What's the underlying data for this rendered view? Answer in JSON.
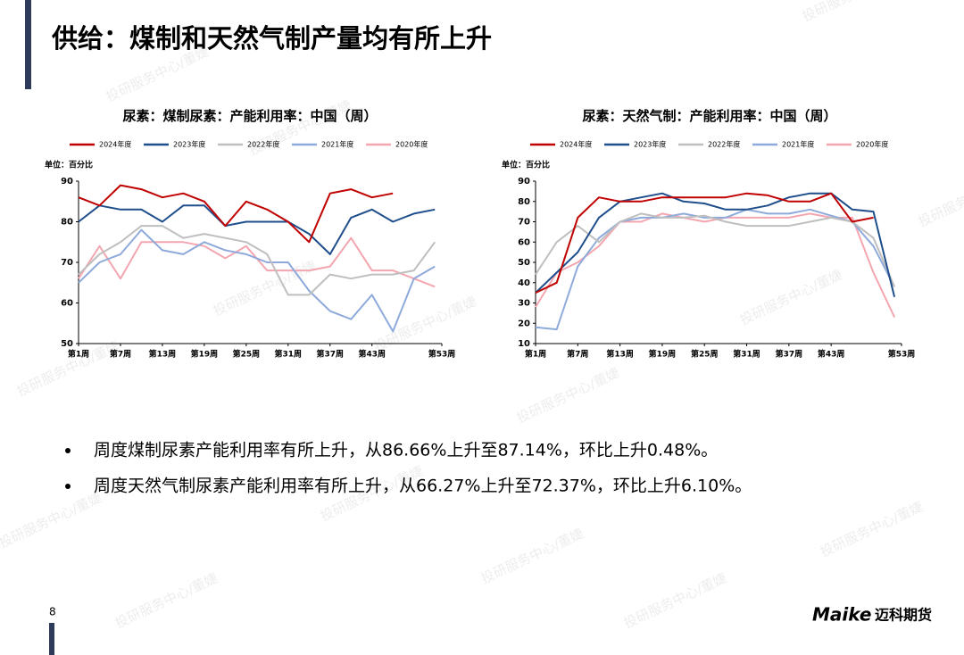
{
  "title": "供给：煤制和天然气制产量均有所上升",
  "bullets": [
    "周度煤制尿素产能利用率有所上升，从86.66%上升至87.14%，环比上升0.48%。",
    "周度天然气制尿素产能利用率有所上升，从66.27%上升至72.37%，环比上升6.10%。"
  ],
  "page_number": "8",
  "logo": {
    "brand": "Maike",
    "name": "迈科期货"
  },
  "watermark": "投研服务中心/董婕",
  "chart_data": [
    {
      "type": "line",
      "title": "尿素：煤制尿素：产能利用率：中国（周）",
      "y_label": "单位：百分比",
      "x": [
        1,
        4,
        7,
        10,
        13,
        16,
        19,
        22,
        25,
        28,
        31,
        34,
        37,
        40,
        43,
        46,
        49,
        52
      ],
      "xlim": [
        1,
        53
      ],
      "xticks": [
        {
          "value": 1,
          "label": "第1周"
        },
        {
          "value": 7,
          "label": "第7周"
        },
        {
          "value": 13,
          "label": "第13周"
        },
        {
          "value": 19,
          "label": "第19周"
        },
        {
          "value": 25,
          "label": "第25周"
        },
        {
          "value": 31,
          "label": "第31周"
        },
        {
          "value": 37,
          "label": "第37周"
        },
        {
          "value": 43,
          "label": "第43周"
        },
        {
          "value": 53,
          "label": "第53周"
        }
      ],
      "ylim": [
        50,
        90
      ],
      "yticks": [
        50,
        60,
        70,
        80,
        90
      ],
      "series": [
        {
          "name": "2024年度",
          "color": "#c00000",
          "values": [
            86,
            84,
            89,
            88,
            86,
            87,
            85,
            79,
            85,
            83,
            80,
            75,
            87,
            88,
            86,
            87,
            null,
            null
          ]
        },
        {
          "name": "2023年度",
          "color": "#1f4e8c",
          "values": [
            80,
            84,
            83,
            83,
            80,
            84,
            84,
            79,
            80,
            80,
            80,
            77,
            72,
            81,
            83,
            80,
            82,
            83
          ]
        },
        {
          "name": "2022年度",
          "color": "#bfbfbf",
          "values": [
            67,
            72,
            75,
            79,
            79,
            76,
            77,
            76,
            75,
            72,
            62,
            62,
            67,
            66,
            67,
            67,
            68,
            75
          ]
        },
        {
          "name": "2021年度",
          "color": "#8eaadb",
          "values": [
            65,
            70,
            72,
            78,
            73,
            72,
            75,
            73,
            72,
            70,
            70,
            63,
            58,
            56,
            62,
            53,
            66,
            69
          ]
        },
        {
          "name": "2020年度",
          "color": "#f4a6b0",
          "values": [
            66,
            74,
            66,
            75,
            75,
            75,
            74,
            71,
            74,
            68,
            68,
            68,
            69,
            76,
            68,
            68,
            66,
            64
          ]
        }
      ]
    },
    {
      "type": "line",
      "title": "尿素：天然气制：产能利用率：中国（周）",
      "y_label": "单位：百分比",
      "x": [
        1,
        4,
        7,
        10,
        13,
        16,
        19,
        22,
        25,
        28,
        31,
        34,
        37,
        40,
        43,
        46,
        49,
        52
      ],
      "xlim": [
        1,
        53
      ],
      "xticks": [
        {
          "value": 1,
          "label": "第1周"
        },
        {
          "value": 7,
          "label": "第7周"
        },
        {
          "value": 13,
          "label": "第13周"
        },
        {
          "value": 19,
          "label": "第19周"
        },
        {
          "value": 25,
          "label": "第25周"
        },
        {
          "value": 31,
          "label": "第31周"
        },
        {
          "value": 37,
          "label": "第37周"
        },
        {
          "value": 43,
          "label": "第43周"
        },
        {
          "value": 53,
          "label": "第53周"
        }
      ],
      "ylim": [
        10,
        90
      ],
      "yticks": [
        10,
        20,
        30,
        40,
        50,
        60,
        70,
        80,
        90
      ],
      "series": [
        {
          "name": "2024年度",
          "color": "#c00000",
          "values": [
            35,
            40,
            72,
            82,
            80,
            80,
            82,
            82,
            82,
            82,
            84,
            83,
            80,
            80,
            84,
            70,
            72,
            null
          ]
        },
        {
          "name": "2023年度",
          "color": "#1f4e8c",
          "values": [
            35,
            45,
            55,
            72,
            80,
            82,
            84,
            80,
            79,
            76,
            76,
            78,
            82,
            84,
            84,
            76,
            75,
            33
          ]
        },
        {
          "name": "2022年度",
          "color": "#bfbfbf",
          "values": [
            44,
            60,
            68,
            60,
            70,
            74,
            72,
            72,
            73,
            70,
            68,
            68,
            68,
            70,
            72,
            70,
            62,
            38
          ]
        },
        {
          "name": "2021年度",
          "color": "#8eaadb",
          "values": [
            18,
            17,
            48,
            62,
            70,
            72,
            72,
            74,
            72,
            72,
            76,
            74,
            74,
            76,
            73,
            70,
            58,
            38
          ]
        },
        {
          "name": "2020年度",
          "color": "#f4a6b0",
          "values": [
            28,
            45,
            50,
            58,
            70,
            70,
            74,
            72,
            70,
            72,
            72,
            72,
            72,
            74,
            72,
            72,
            45,
            23
          ]
        }
      ]
    }
  ]
}
